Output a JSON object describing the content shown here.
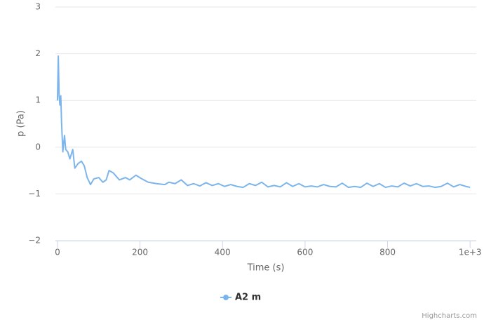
{
  "chart_data": {
    "type": "line",
    "y_label": "p (Pa)",
    "x_label": "Time (s)",
    "xlim": [
      -5,
      1015
    ],
    "ylim": [
      -2,
      3
    ],
    "xticks": [
      0,
      200,
      400,
      600,
      800,
      {
        "value": 1000,
        "label": "1e+3"
      }
    ],
    "yticks": [
      {
        "value": -2,
        "label": "−2"
      },
      {
        "value": -1,
        "label": "−1"
      },
      0,
      1,
      2,
      3
    ],
    "grid": true,
    "legend": "bottom",
    "credits": "Highcharts.com",
    "x": [
      0,
      2,
      4,
      6,
      8,
      10,
      13,
      17,
      20,
      25,
      30,
      37,
      42,
      50,
      58,
      65,
      72,
      80,
      88,
      100,
      110,
      118,
      125,
      135,
      150,
      165,
      175,
      190,
      205,
      220,
      240,
      260,
      270,
      285,
      300,
      315,
      330,
      345,
      360,
      375,
      390,
      405,
      420,
      435,
      450,
      465,
      480,
      495,
      510,
      525,
      540,
      555,
      570,
      585,
      600,
      615,
      630,
      645,
      660,
      675,
      690,
      705,
      720,
      735,
      750,
      765,
      780,
      795,
      810,
      825,
      840,
      855,
      870,
      885,
      900,
      915,
      930,
      945,
      960,
      975,
      990,
      1000
    ],
    "series": [
      {
        "name": "A2 m",
        "color": "#7cb5ec",
        "values": [
          1.0,
          1.95,
          1.1,
          0.9,
          1.1,
          0.5,
          -0.1,
          0.25,
          -0.05,
          -0.1,
          -0.25,
          -0.05,
          -0.45,
          -0.35,
          -0.3,
          -0.4,
          -0.65,
          -0.8,
          -0.68,
          -0.65,
          -0.75,
          -0.7,
          -0.5,
          -0.55,
          -0.7,
          -0.65,
          -0.7,
          -0.6,
          -0.68,
          -0.75,
          -0.78,
          -0.8,
          -0.75,
          -0.78,
          -0.7,
          -0.82,
          -0.78,
          -0.83,
          -0.76,
          -0.82,
          -0.78,
          -0.84,
          -0.8,
          -0.84,
          -0.86,
          -0.78,
          -0.82,
          -0.75,
          -0.85,
          -0.82,
          -0.85,
          -0.76,
          -0.84,
          -0.78,
          -0.85,
          -0.83,
          -0.85,
          -0.8,
          -0.84,
          -0.85,
          -0.77,
          -0.86,
          -0.84,
          -0.86,
          -0.77,
          -0.84,
          -0.78,
          -0.86,
          -0.83,
          -0.85,
          -0.77,
          -0.83,
          -0.78,
          -0.84,
          -0.83,
          -0.86,
          -0.84,
          -0.77,
          -0.85,
          -0.8,
          -0.84,
          -0.86
        ]
      }
    ]
  }
}
